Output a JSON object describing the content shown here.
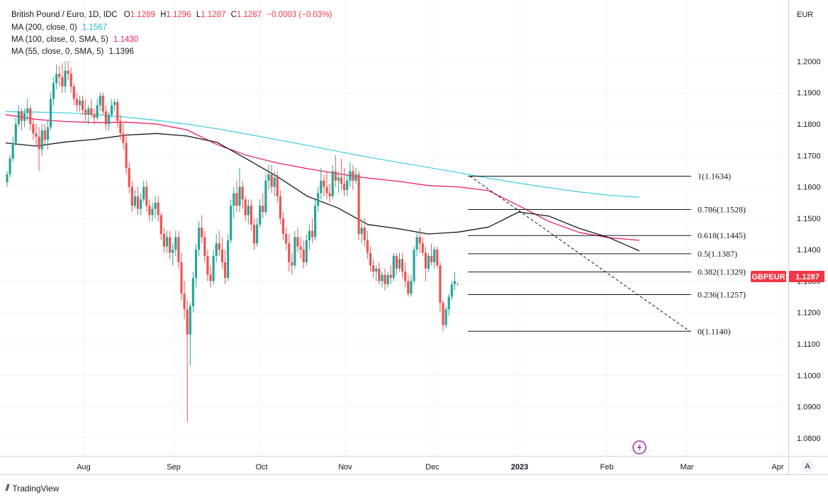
{
  "header": {
    "symbol": "British Pound / Euro, 1D, IDC",
    "o_label": "O",
    "o_value": "1.1289",
    "h_label": "H",
    "h_value": "1.1296",
    "l_label": "L",
    "l_value": "1.1287",
    "c_label": "C",
    "c_value": "1.1287",
    "change": "−0.0003 (−0.03%)"
  },
  "indicators": [
    {
      "label": "MA (200, close, 0)",
      "value": "1.1567",
      "color": "#4dd0e1"
    },
    {
      "label": "MA (100, close, 0, SMA, 5)",
      "value": "1.1430",
      "color": "#e91e63"
    },
    {
      "label": "MA (55, close, 0, SMA, 5)",
      "value": "1.1396",
      "color": "#131722"
    }
  ],
  "currency_label": "EUR",
  "price_tag": {
    "symbol": "GBPEUR",
    "value": "1.1287",
    "color": "#f23645"
  },
  "branding": "TradingView",
  "auto_scale_button": "A",
  "colors": {
    "up": "#26a69a",
    "down": "#ef5350",
    "ma200": "#4dd0e1",
    "ma100": "#e91e63",
    "ma55": "#131722"
  },
  "chart_data": {
    "type": "candlestick",
    "y_axis": {
      "min": 1.075,
      "max": 1.215,
      "ticks": [
        "1.2000",
        "1.1900",
        "1.1800",
        "1.1700",
        "1.1600",
        "1.1500",
        "1.1400",
        "1.1300",
        "1.1200",
        "1.1100",
        "1.1000",
        "1.0900",
        "1.0800"
      ]
    },
    "x_axis_labels": [
      "Aug",
      "Sep",
      "Oct",
      "Nov",
      "Dec",
      "2023",
      "Feb",
      "Mar",
      "Apr"
    ],
    "candles": [
      [
        1.1615,
        1.165,
        1.16,
        1.164
      ],
      [
        1.164,
        1.17,
        1.163,
        1.169
      ],
      [
        1.169,
        1.176,
        1.168,
        1.174
      ],
      [
        1.174,
        1.182,
        1.173,
        1.18
      ],
      [
        1.18,
        1.186,
        1.179,
        1.184
      ],
      [
        1.184,
        1.185,
        1.178,
        1.181
      ],
      [
        1.181,
        1.185,
        1.179,
        1.1835
      ],
      [
        1.1835,
        1.188,
        1.181,
        1.185
      ],
      [
        1.185,
        1.186,
        1.178,
        1.18
      ],
      [
        1.18,
        1.182,
        1.175,
        1.177
      ],
      [
        1.177,
        1.18,
        1.173,
        1.176
      ],
      [
        1.176,
        1.179,
        1.165,
        1.172
      ],
      [
        1.172,
        1.18,
        1.17,
        1.178
      ],
      [
        1.178,
        1.18,
        1.173,
        1.175
      ],
      [
        1.175,
        1.181,
        1.172,
        1.179
      ],
      [
        1.179,
        1.19,
        1.178,
        1.188
      ],
      [
        1.188,
        1.195,
        1.186,
        1.193
      ],
      [
        1.193,
        1.199,
        1.191,
        1.196
      ],
      [
        1.196,
        1.1985,
        1.192,
        1.195
      ],
      [
        1.195,
        1.1995,
        1.19,
        1.192
      ],
      [
        1.192,
        1.2,
        1.19,
        1.197
      ],
      [
        1.197,
        1.2,
        1.194,
        1.196
      ],
      [
        1.196,
        1.198,
        1.19,
        1.192
      ],
      [
        1.192,
        1.193,
        1.186,
        1.188
      ],
      [
        1.188,
        1.19,
        1.184,
        1.186
      ],
      [
        1.186,
        1.189,
        1.184,
        1.1875
      ],
      [
        1.1875,
        1.189,
        1.183,
        1.1845
      ],
      [
        1.1845,
        1.188,
        1.181,
        1.183
      ],
      [
        1.183,
        1.186,
        1.18,
        1.185
      ],
      [
        1.185,
        1.188,
        1.182,
        1.183
      ],
      [
        1.183,
        1.185,
        1.18,
        1.182
      ],
      [
        1.182,
        1.188,
        1.181,
        1.186
      ],
      [
        1.186,
        1.19,
        1.184,
        1.189
      ],
      [
        1.189,
        1.19,
        1.183,
        1.184
      ],
      [
        1.184,
        1.186,
        1.178,
        1.18
      ],
      [
        1.18,
        1.184,
        1.178,
        1.183
      ],
      [
        1.183,
        1.188,
        1.182,
        1.186
      ],
      [
        1.186,
        1.188,
        1.184,
        1.187
      ],
      [
        1.187,
        1.188,
        1.179,
        1.181
      ],
      [
        1.181,
        1.183,
        1.175,
        1.177
      ],
      [
        1.177,
        1.18,
        1.172,
        1.174
      ],
      [
        1.174,
        1.176,
        1.164,
        1.166
      ],
      [
        1.166,
        1.168,
        1.158,
        1.16
      ],
      [
        1.16,
        1.162,
        1.152,
        1.154
      ],
      [
        1.154,
        1.159,
        1.153,
        1.157
      ],
      [
        1.157,
        1.16,
        1.151,
        1.153
      ],
      [
        1.153,
        1.158,
        1.151,
        1.156
      ],
      [
        1.156,
        1.162,
        1.155,
        1.16
      ],
      [
        1.16,
        1.162,
        1.152,
        1.154
      ],
      [
        1.154,
        1.156,
        1.149,
        1.151
      ],
      [
        1.151,
        1.155,
        1.149,
        1.153
      ],
      [
        1.153,
        1.157,
        1.15,
        1.155
      ],
      [
        1.155,
        1.157,
        1.149,
        1.151
      ],
      [
        1.151,
        1.152,
        1.143,
        1.145
      ],
      [
        1.145,
        1.147,
        1.139,
        1.141
      ],
      [
        1.141,
        1.146,
        1.139,
        1.144
      ],
      [
        1.144,
        1.146,
        1.137,
        1.139
      ],
      [
        1.139,
        1.142,
        1.135,
        1.14
      ],
      [
        1.14,
        1.146,
        1.138,
        1.144
      ],
      [
        1.144,
        1.146,
        1.134,
        1.136
      ],
      [
        1.136,
        1.139,
        1.124,
        1.126
      ],
      [
        1.126,
        1.13,
        1.118,
        1.121
      ],
      [
        1.121,
        1.124,
        1.085,
        1.113
      ],
      [
        1.113,
        1.123,
        1.103,
        1.122
      ],
      [
        1.122,
        1.133,
        1.12,
        1.131
      ],
      [
        1.131,
        1.142,
        1.128,
        1.14
      ],
      [
        1.14,
        1.149,
        1.138,
        1.147
      ],
      [
        1.147,
        1.151,
        1.142,
        1.144
      ],
      [
        1.144,
        1.146,
        1.136,
        1.138
      ],
      [
        1.138,
        1.14,
        1.13,
        1.132
      ],
      [
        1.132,
        1.135,
        1.128,
        1.13
      ],
      [
        1.13,
        1.14,
        1.129,
        1.138
      ],
      [
        1.138,
        1.145,
        1.136,
        1.142
      ],
      [
        1.142,
        1.146,
        1.138,
        1.14
      ],
      [
        1.14,
        1.144,
        1.134,
        1.136
      ],
      [
        1.136,
        1.14,
        1.129,
        1.131
      ],
      [
        1.131,
        1.145,
        1.13,
        1.143
      ],
      [
        1.143,
        1.156,
        1.142,
        1.154
      ],
      [
        1.154,
        1.16,
        1.15,
        1.158
      ],
      [
        1.158,
        1.162,
        1.152,
        1.154
      ],
      [
        1.154,
        1.166,
        1.152,
        1.16
      ],
      [
        1.16,
        1.162,
        1.153,
        1.156
      ],
      [
        1.156,
        1.157,
        1.149,
        1.151
      ],
      [
        1.151,
        1.156,
        1.148,
        1.154
      ],
      [
        1.154,
        1.156,
        1.146,
        1.148
      ],
      [
        1.148,
        1.15,
        1.14,
        1.142
      ],
      [
        1.142,
        1.15,
        1.141,
        1.148
      ],
      [
        1.148,
        1.156,
        1.147,
        1.154
      ],
      [
        1.154,
        1.158,
        1.15,
        1.152
      ],
      [
        1.152,
        1.164,
        1.151,
        1.162
      ],
      [
        1.162,
        1.167,
        1.159,
        1.164
      ],
      [
        1.164,
        1.167,
        1.158,
        1.16
      ],
      [
        1.16,
        1.165,
        1.157,
        1.163
      ],
      [
        1.163,
        1.165,
        1.155,
        1.157
      ],
      [
        1.157,
        1.159,
        1.148,
        1.15
      ],
      [
        1.15,
        1.152,
        1.143,
        1.145
      ],
      [
        1.145,
        1.147,
        1.14,
        1.142
      ],
      [
        1.142,
        1.145,
        1.133,
        1.136
      ],
      [
        1.136,
        1.139,
        1.132,
        1.135
      ],
      [
        1.135,
        1.146,
        1.134,
        1.144
      ],
      [
        1.144,
        1.147,
        1.139,
        1.141
      ],
      [
        1.141,
        1.144,
        1.137,
        1.14
      ],
      [
        1.14,
        1.143,
        1.134,
        1.136
      ],
      [
        1.136,
        1.145,
        1.135,
        1.143
      ],
      [
        1.143,
        1.148,
        1.14,
        1.146
      ],
      [
        1.146,
        1.15,
        1.142,
        1.144
      ],
      [
        1.144,
        1.156,
        1.143,
        1.154
      ],
      [
        1.154,
        1.16,
        1.152,
        1.158
      ],
      [
        1.158,
        1.166,
        1.156,
        1.162
      ],
      [
        1.162,
        1.164,
        1.157,
        1.16
      ],
      [
        1.16,
        1.165,
        1.156,
        1.158
      ],
      [
        1.158,
        1.161,
        1.155,
        1.157
      ],
      [
        1.157,
        1.167,
        1.156,
        1.165
      ],
      [
        1.165,
        1.17,
        1.16,
        1.162
      ],
      [
        1.162,
        1.165,
        1.158,
        1.163
      ],
      [
        1.163,
        1.169,
        1.159,
        1.161
      ],
      [
        1.161,
        1.166,
        1.157,
        1.159
      ],
      [
        1.159,
        1.164,
        1.157,
        1.162
      ],
      [
        1.162,
        1.168,
        1.16,
        1.165
      ],
      [
        1.165,
        1.167,
        1.159,
        1.162
      ],
      [
        1.162,
        1.166,
        1.161,
        1.164
      ],
      [
        1.164,
        1.165,
        1.143,
        1.145
      ],
      [
        1.145,
        1.15,
        1.142,
        1.147
      ],
      [
        1.147,
        1.15,
        1.141,
        1.143
      ],
      [
        1.143,
        1.146,
        1.137,
        1.139
      ],
      [
        1.139,
        1.141,
        1.133,
        1.135
      ],
      [
        1.135,
        1.137,
        1.131,
        1.133
      ],
      [
        1.133,
        1.135,
        1.13,
        1.134
      ],
      [
        1.134,
        1.136,
        1.129,
        1.13
      ],
      [
        1.13,
        1.133,
        1.128,
        1.132
      ],
      [
        1.132,
        1.134,
        1.127,
        1.129
      ],
      [
        1.129,
        1.133,
        1.128,
        1.132
      ],
      [
        1.132,
        1.135,
        1.129,
        1.131
      ],
      [
        1.131,
        1.139,
        1.13,
        1.138
      ],
      [
        1.138,
        1.139,
        1.132,
        1.134
      ],
      [
        1.134,
        1.139,
        1.133,
        1.137
      ],
      [
        1.137,
        1.139,
        1.131,
        1.133
      ],
      [
        1.133,
        1.136,
        1.128,
        1.13
      ],
      [
        1.13,
        1.132,
        1.125,
        1.126
      ],
      [
        1.126,
        1.132,
        1.125,
        1.13
      ],
      [
        1.13,
        1.141,
        1.129,
        1.14
      ],
      [
        1.14,
        1.146,
        1.138,
        1.144
      ],
      [
        1.144,
        1.147,
        1.139,
        1.142
      ],
      [
        1.142,
        1.144,
        1.138,
        1.139
      ],
      [
        1.139,
        1.141,
        1.13,
        1.134
      ],
      [
        1.134,
        1.139,
        1.133,
        1.138
      ],
      [
        1.138,
        1.142,
        1.135,
        1.136
      ],
      [
        1.136,
        1.141,
        1.134,
        1.14
      ],
      [
        1.14,
        1.141,
        1.134,
        1.135
      ],
      [
        1.135,
        1.136,
        1.12,
        1.123
      ],
      [
        1.123,
        1.124,
        1.114,
        1.116
      ],
      [
        1.116,
        1.122,
        1.115,
        1.121
      ],
      [
        1.121,
        1.126,
        1.119,
        1.125
      ],
      [
        1.125,
        1.13,
        1.124,
        1.129
      ],
      [
        1.129,
        1.133,
        1.127,
        1.13
      ],
      [
        1.1289,
        1.1296,
        1.1287,
        1.1287
      ]
    ],
    "ma200": [
      1.184,
      1.1838,
      1.1836,
      1.183,
      1.1822,
      1.1812,
      1.18,
      1.1785,
      1.1768,
      1.175,
      1.1732,
      1.1713,
      1.1695,
      1.1678,
      1.1662,
      1.1645,
      1.1628,
      1.1612,
      1.1597,
      1.1584,
      1.1573,
      1.1567
    ],
    "ma100": [
      1.183,
      1.1815,
      1.1808,
      1.1805,
      1.1806,
      1.18,
      1.1782,
      1.1735,
      1.17,
      1.1676,
      1.1658,
      1.1642,
      1.1628,
      1.1618,
      1.1604,
      1.16,
      1.1588,
      1.154,
      1.149,
      1.1455,
      1.1438,
      1.143
    ],
    "ma55": [
      1.174,
      1.173,
      1.1743,
      1.1752,
      1.1765,
      1.177,
      1.1762,
      1.1742,
      1.1688,
      1.1633,
      1.157,
      1.1533,
      1.148,
      1.1467,
      1.145,
      1.1456,
      1.1472,
      1.152,
      1.1507,
      1.1468,
      1.1438,
      1.1396
    ],
    "fibonacci": [
      {
        "label": "1(1.1634)",
        "value": 1.1634
      },
      {
        "label": "0.786(1.1528)",
        "value": 1.1528
      },
      {
        "label": "0.618(1.1445)",
        "value": 1.1445
      },
      {
        "label": "0.5(1.1387)",
        "value": 1.1387
      },
      {
        "label": "0.382(1.1329)",
        "value": 1.1329
      },
      {
        "label": "0.236(1.1257)",
        "value": 1.1257
      },
      {
        "label": "0(1.1140)",
        "value": 1.114
      }
    ],
    "trendline": {
      "from": [
        1.1634
      ],
      "to": [
        1.114
      ]
    }
  }
}
